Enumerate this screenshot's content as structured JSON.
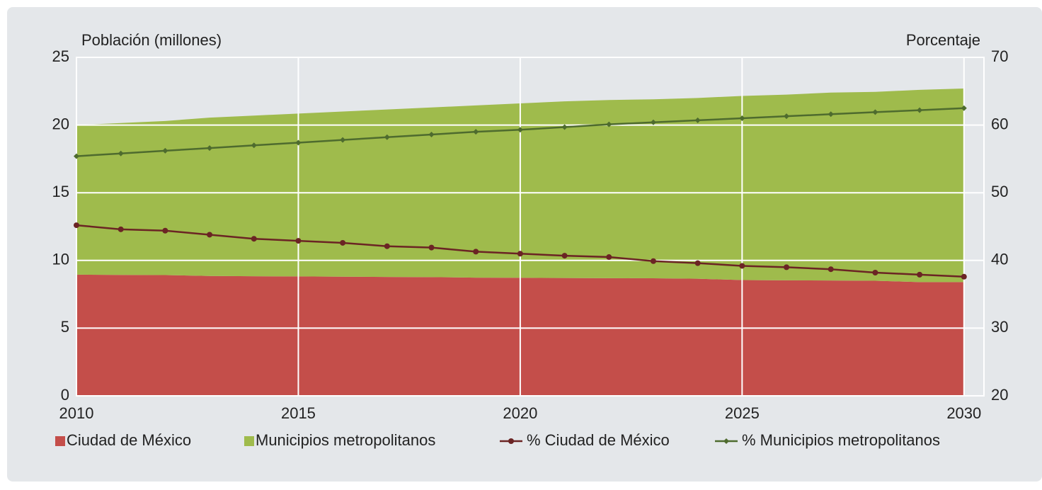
{
  "chart_data": {
    "type": "area",
    "y_label": "Población (millones)",
    "y2_label": "Porcentaje",
    "x": [
      2010,
      2011,
      2012,
      2013,
      2014,
      2015,
      2016,
      2017,
      2018,
      2019,
      2020,
      2021,
      2022,
      2023,
      2024,
      2025,
      2026,
      2027,
      2028,
      2029,
      2030
    ],
    "xlim": [
      2010,
      2030.45
    ],
    "xticks": [
      2010,
      2015,
      2020,
      2025,
      2030
    ],
    "ylim": [
      0,
      25
    ],
    "yticks": [
      0,
      5,
      10,
      15,
      20,
      25
    ],
    "y2lim": [
      20,
      70
    ],
    "y2ticks": [
      20,
      30,
      40,
      50,
      60,
      70
    ],
    "grid": true,
    "legend": "bottom",
    "series": [
      {
        "name": "Ciudad de México",
        "type": "area",
        "color": "#c44e4a",
        "values": [
          8.95,
          8.93,
          8.92,
          8.85,
          8.83,
          8.82,
          8.8,
          8.78,
          8.77,
          8.73,
          8.72,
          8.7,
          8.69,
          8.68,
          8.65,
          8.55,
          8.53,
          8.52,
          8.5,
          8.4,
          8.4
        ]
      },
      {
        "name": "Municipios metropolitanos",
        "type": "area",
        "color": "#9fbb4c",
        "values": [
          11.05,
          11.22,
          11.38,
          11.7,
          11.87,
          12.03,
          12.2,
          12.37,
          12.53,
          12.72,
          12.88,
          13.05,
          13.16,
          13.22,
          13.35,
          13.6,
          13.72,
          13.88,
          13.95,
          14.2,
          14.3
        ]
      },
      {
        "name": "% Ciudad de México",
        "type": "line",
        "axis": "y2",
        "color": "#6b2424",
        "marker": "circle",
        "values": [
          45.2,
          44.6,
          44.4,
          43.8,
          43.2,
          42.9,
          42.6,
          42.1,
          41.9,
          41.3,
          41.0,
          40.7,
          40.5,
          39.9,
          39.6,
          39.2,
          39.0,
          38.7,
          38.2,
          37.9,
          37.6
        ]
      },
      {
        "name": "% Municipios metropolitanos",
        "type": "line",
        "axis": "y2",
        "color": "#4e6b2e",
        "marker": "diamond",
        "values": [
          55.4,
          55.8,
          56.2,
          56.6,
          57.0,
          57.4,
          57.8,
          58.2,
          58.6,
          59.0,
          59.3,
          59.7,
          60.1,
          60.4,
          60.7,
          61.0,
          61.3,
          61.6,
          61.9,
          62.2,
          62.5
        ]
      }
    ]
  }
}
